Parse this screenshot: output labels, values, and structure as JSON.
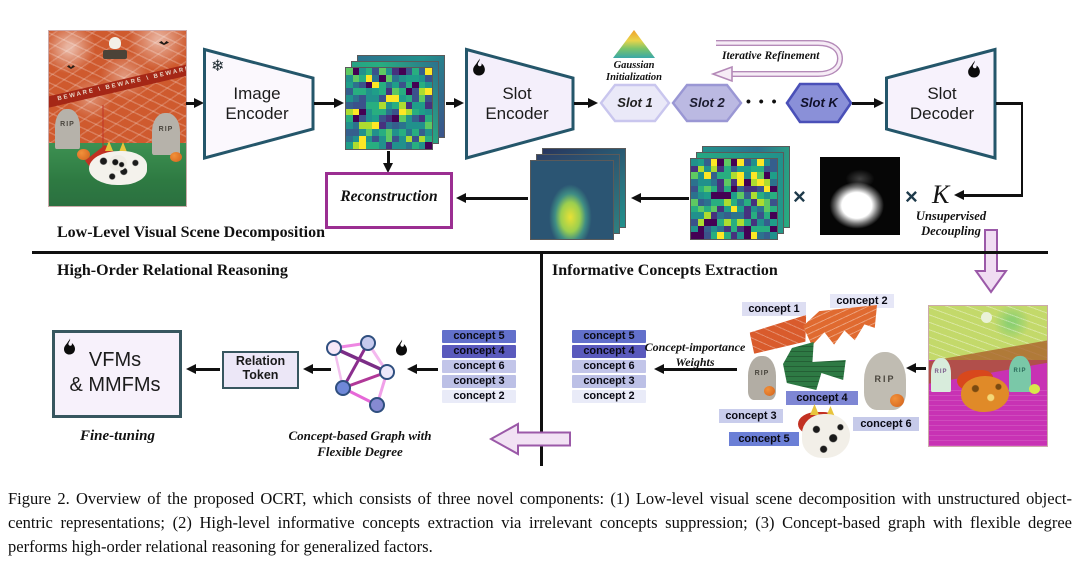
{
  "sections": {
    "low_level": "Low-Level Visual Scene Decomposition",
    "high_order": "High-Order Relational Reasoning",
    "informative": "Informative Concepts Extraction"
  },
  "pipeline": {
    "image_encoder_l1": "Image",
    "image_encoder_l2": "Encoder",
    "slot_encoder_l1": "Slot",
    "slot_encoder_l2": "Encoder",
    "slot_decoder_l1": "Slot",
    "slot_decoder_l2": "Decoder",
    "reconstruction": "Reconstruction",
    "slot1": "Slot 1",
    "slot2": "Slot 2",
    "slot_dots": "• • •",
    "slotk": "Slot K",
    "gaussian_l1": "Gaussian",
    "gaussian_l2": "Initialization",
    "iterative_refinement": "Iterative Refinement",
    "unsupervised_l1": "Unsupervised",
    "unsupervised_l2": "Decoupling",
    "times_1": "×",
    "times_2": "×",
    "k_label": "K"
  },
  "reasoning": {
    "vfms_l1": "VFMs",
    "vfms_l2": "& MMFMs",
    "relation_l1": "Relation",
    "relation_l2": "Token",
    "fine_tuning": "Fine-tuning",
    "graph_caption_l1": "Concept-based Graph with",
    "graph_caption_l2": "Flexible Degree"
  },
  "extraction": {
    "weights_l1": "Concept-importance",
    "weights_l2": "Weights",
    "bars": [
      {
        "label": "concept 5",
        "color": "#6270cb"
      },
      {
        "label": "concept 4",
        "color": "#5a5abd"
      },
      {
        "label": "concept 6",
        "color": "#c2c5e9"
      },
      {
        "label": "concept 3",
        "color": "#bcc0e6"
      },
      {
        "label": "concept 2",
        "color": "#e9ebf8"
      }
    ],
    "chips": [
      {
        "label": "concept 1",
        "color": "#dddef2"
      },
      {
        "label": "concept 2",
        "color": "#e6e7f7"
      },
      {
        "label": "concept 3",
        "color": "#c9cdec"
      },
      {
        "label": "concept 4",
        "color": "#7e86d4"
      },
      {
        "label": "concept 5",
        "color": "#6b7fd6"
      },
      {
        "label": "concept 6",
        "color": "#c6cae9"
      }
    ],
    "tombstone_text": "RIP",
    "beware_text": "BEWARE"
  },
  "caption": "Figure 2. Overview of the proposed OCRT, which consists of three novel components: (1) Low-level visual scene decomposition with unstructured object-centric representations; (2) High-level informative concepts extraction via irrelevant concepts suppression; (3) Concept-based graph with flexible degree performs high-order relational reasoning for generalized factors.",
  "colors": {
    "block_border": "#24566a",
    "block_fill": "#f6f1fb",
    "reconstruction_border": "#9b2f92",
    "pink_arrow_fill": "#f0ddf2",
    "pink_arrow_stroke": "#9b59a8",
    "viridis_weighted": [
      "#21918c",
      "#21918c",
      "#2c728e",
      "#28ae80",
      "#28ae80",
      "#3b528b",
      "#5ec962",
      "#440154",
      "#fde725",
      "#addc30",
      "#355f8d",
      "#46327e",
      "#1f9e89"
    ]
  }
}
